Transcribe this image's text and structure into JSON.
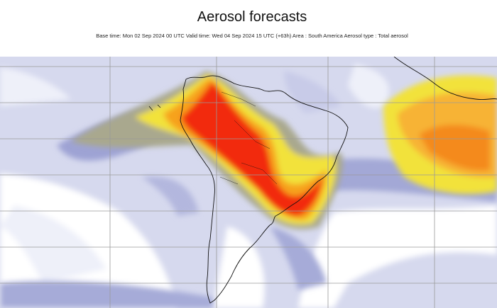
{
  "header": {
    "title": "Aerosol forecasts",
    "subtitle": "Base time: Mon 02 Sep 2024 00 UTC Valid time: Wed 04 Sep 2024 15 UTC (+63h) Area : South America Aerosol type : Total aerosol"
  }
}
